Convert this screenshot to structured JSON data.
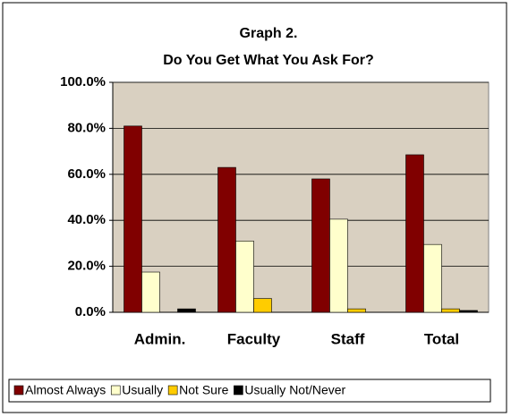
{
  "chart_data": {
    "type": "bar",
    "title": "Graph 2.",
    "subtitle": "Do You Get What You Ask For?",
    "categories": [
      "Admin.",
      "Faculty",
      "Staff",
      "Total"
    ],
    "series": [
      {
        "name": "Almost Always",
        "color": "#800000",
        "values": [
          81,
          63,
          58,
          68.5
        ]
      },
      {
        "name": "Usually",
        "color": "#ffffcc",
        "values": [
          17.5,
          31,
          40.5,
          29.5
        ]
      },
      {
        "name": "Not Sure",
        "color": "#ffcc00",
        "values": [
          0,
          6,
          1.5,
          1.5
        ]
      },
      {
        "name": "Usually Not/Never",
        "color": "#000000",
        "values": [
          1.5,
          0,
          0,
          0.8
        ]
      }
    ],
    "ylim": [
      0,
      100
    ],
    "yticks": [
      {
        "value": 0,
        "label": "0.0%"
      },
      {
        "value": 20,
        "label": "20.0%"
      },
      {
        "value": 40,
        "label": "40.0%"
      },
      {
        "value": 60,
        "label": "60.0%"
      },
      {
        "value": 80,
        "label": "80.0%"
      },
      {
        "value": 100,
        "label": "100.0%"
      }
    ],
    "grid": true,
    "legend": "bottom"
  }
}
